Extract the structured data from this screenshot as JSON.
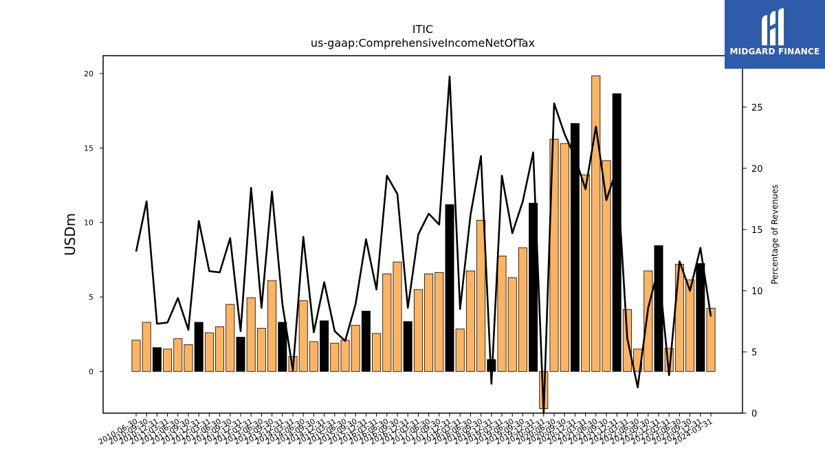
{
  "chart_data": {
    "type": "bar+line",
    "title": "ITIC",
    "subtitle": "us-gaap:ComprehensiveIncomeNetOfTax",
    "ylabel": "USDm",
    "y2label": "Percentage of Revenues",
    "ylim": [
      -2.8,
      21.2
    ],
    "y2lim": [
      0,
      29.2
    ],
    "yticks": [
      0,
      5,
      10,
      15,
      20
    ],
    "y2ticks": [
      0,
      5,
      10,
      15,
      20,
      25
    ],
    "colors": {
      "quarter_bar": "#fdb462",
      "annual_bar": "#000000",
      "line": "#000000",
      "frame": "#000000"
    },
    "x": [
      "2010-06-30",
      "2010-09-30",
      "2010-12-31",
      "2011-03-31",
      "2011-06-30",
      "2011-09-30",
      "2011-12-31",
      "2012-03-31",
      "2012-06-30",
      "2012-09-30",
      "2012-12-31",
      "2013-03-31",
      "2013-06-30",
      "2013-09-30",
      "2013-12-31",
      "2014-03-31",
      "2014-06-30",
      "2014-09-30",
      "2014-12-31",
      "2015-03-31",
      "2015-06-30",
      "2015-09-30",
      "2015-12-31",
      "2016-03-31",
      "2016-06-30",
      "2016-09-30",
      "2016-12-31",
      "2017-03-31",
      "2017-06-30",
      "2017-09-30",
      "2017-12-31",
      "2018-03-31",
      "2018-06-30",
      "2018-09-30",
      "2018-12-31",
      "2019-03-31",
      "2019-06-30",
      "2019-09-30",
      "2019-12-31",
      "2020-03-31",
      "2020-06-30",
      "2020-09-30",
      "2020-12-31",
      "2021-03-31",
      "2021-06-30",
      "2021-09-30",
      "2021-12-31",
      "2022-03-31",
      "2022-06-30",
      "2022-09-30",
      "2022-12-31",
      "2023-03-31",
      "2023-06-30",
      "2023-09-30",
      "2023-12-31",
      "2024-03-31"
    ],
    "xtick_labels": [
      "2010-06-30",
      "2010-09-30",
      "2010-12-31",
      "2011-03-31",
      "2011-06-30",
      "2011-09-30",
      "2011-12-31",
      "2012-03-31",
      "2012-06-30",
      "2012-09-30",
      "2012-12-31",
      "2013-03-31",
      "2013-06-30",
      "2013-09-30",
      "2013-12-31",
      "2014-03-31",
      "2014-06-30",
      "2014-09-30",
      "2014-12-31",
      "2015-03-31",
      "2015-06-30",
      "2015-09-30",
      "2015-12-31",
      "2016-03-31",
      "2016-06-30",
      "2016-09-30",
      "2016-12-31",
      "2017-03-31",
      "2017-06-30",
      "2017-09-30",
      "2017-12-31",
      "2018-03-31",
      "2018-06-30",
      "2018-09-30",
      "2018-12-31",
      "2019-03-31",
      "2019-06-30",
      "2019-09-30",
      "2019-12-31",
      "2020-03-31",
      "2020-06-30",
      "2020-09-30",
      "2020-12-31",
      "2021-03-31",
      "2021-06-30",
      "2021-09-30",
      "2021-12-31",
      "2022-03-31",
      "2022-06-30",
      "2022-09-30",
      "2022-12-31",
      "2023-03-31",
      "2023-06-30",
      "2023-09-30",
      "2023-12-31",
      "2024-03-31"
    ],
    "bars": [
      2.1,
      3.3,
      1.6,
      1.5,
      2.2,
      1.8,
      3.3,
      2.6,
      3.0,
      4.5,
      2.3,
      4.95,
      2.9,
      6.1,
      3.3,
      1.0,
      4.75,
      2.0,
      3.4,
      1.9,
      2.1,
      3.1,
      4.05,
      2.55,
      6.55,
      7.35,
      3.35,
      5.5,
      6.55,
      6.65,
      11.2,
      2.85,
      6.75,
      10.15,
      0.8,
      7.75,
      6.3,
      8.3,
      11.3,
      -2.5,
      15.6,
      15.3,
      16.65,
      13.2,
      19.85,
      14.15,
      18.65,
      4.15,
      1.5,
      6.75,
      8.45,
      1.55,
      7.2,
      6.15,
      7.25,
      4.25
    ],
    "annual": [
      false,
      false,
      true,
      false,
      false,
      false,
      true,
      false,
      false,
      false,
      true,
      false,
      false,
      false,
      true,
      false,
      false,
      false,
      true,
      false,
      false,
      false,
      true,
      false,
      false,
      false,
      true,
      false,
      false,
      false,
      true,
      false,
      false,
      false,
      true,
      false,
      false,
      false,
      true,
      false,
      false,
      false,
      true,
      false,
      false,
      false,
      true,
      false,
      false,
      false,
      true,
      false,
      false,
      false,
      true,
      false
    ],
    "line": [
      13.2,
      17.3,
      7.3,
      7.4,
      9.4,
      6.8,
      15.7,
      11.6,
      11.5,
      14.3,
      6.7,
      18.4,
      8.6,
      18.1,
      8.9,
      3.5,
      14.4,
      6.6,
      10.7,
      6.7,
      5.9,
      8.9,
      14.2,
      10.1,
      19.4,
      17.9,
      8.6,
      14.6,
      16.3,
      15.4,
      27.5,
      8.5,
      16.2,
      21.0,
      2.4,
      19.4,
      14.7,
      17.3,
      21.3,
      0.0,
      25.3,
      22.8,
      20.9,
      18.3,
      23.4,
      17.4,
      20.0,
      6.1,
      2.1,
      8.6,
      11.9,
      3.1,
      12.4,
      10.0,
      13.5,
      7.9
    ]
  },
  "logo": {
    "text": "MIDGARD FINANCE",
    "icon": "midgard-m-icon"
  }
}
